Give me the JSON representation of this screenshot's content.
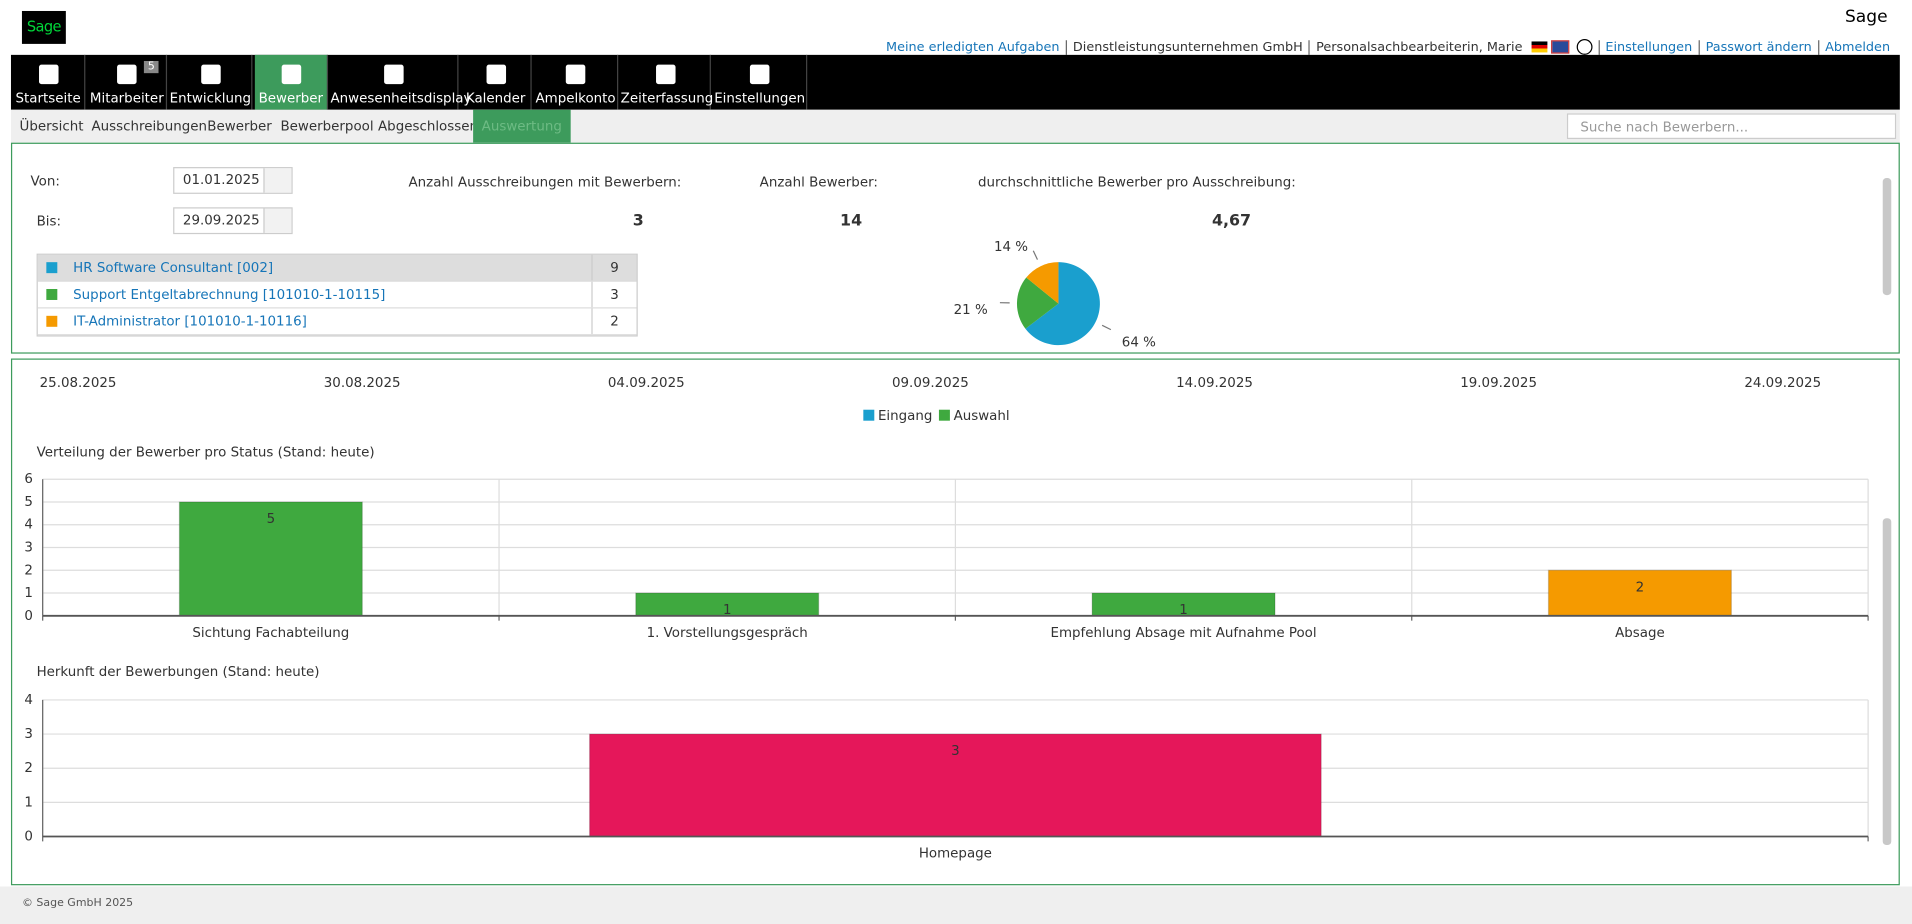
{
  "header": {
    "brand": "Sage",
    "links": [
      "Meine erledigten Aufgaben",
      "Dienstleistungsunternehmen GmbH",
      "Personalsachbearbeiterin, Marie",
      "Einstellungen",
      "Passwort ändern",
      "Abmelden"
    ]
  },
  "nav": [
    {
      "label": "Startseite"
    },
    {
      "label": "Mitarbeiter",
      "badge": 5
    },
    {
      "label": "Entwicklung"
    },
    {
      "label": "Bewerber",
      "active": true
    },
    {
      "label": "Anwesenheitsdisplay"
    },
    {
      "label": "Kalender"
    },
    {
      "label": "Ampelkonto"
    },
    {
      "label": "Zeiterfassung"
    },
    {
      "label": "Einstellungen"
    }
  ],
  "subnav": [
    {
      "label": "Übersicht"
    },
    {
      "label": "Ausschreibungen"
    },
    {
      "label": "Bewerber"
    },
    {
      "label": "Bewerberpool"
    },
    {
      "label": "Abgeschlossen"
    },
    {
      "label": "Auswertung",
      "active": true
    }
  ],
  "search_placeholder": "Suche nach Bewerbern...",
  "filter": {
    "from_label": "Von:",
    "from": "01.01.2025",
    "to_label": "Bis:",
    "to": "29.09.2025"
  },
  "stats": [
    {
      "label": "Anzahl Ausschreibungen mit Bewerbern:",
      "value": 3
    },
    {
      "label": "Anzahl Bewerber:",
      "value": 14
    },
    {
      "label": "durchschnittliche Bewerber pro Ausschreibung:",
      "value": 4.67,
      "value_label": "4,67"
    }
  ],
  "postings": [
    {
      "name": "HR Software Consultant [002]",
      "count": 9,
      "color": "#1a9fce"
    },
    {
      "name": "Support Entgeltabrechnung [101010-1-10115]",
      "count": 3,
      "color": "#3fa93f"
    },
    {
      "name": "IT-Administrator [101010-1-10116]",
      "count": 2,
      "color": "#f59a00"
    }
  ],
  "chart_data": [
    {
      "type": "pie",
      "values": [
        64,
        21,
        14
      ],
      "value_labels": [
        "64 %",
        "21 %",
        "14 %"
      ],
      "colors": [
        "#1a9fce",
        "#3fa93f",
        "#f59a00"
      ]
    },
    {
      "type": "line",
      "categories": [
        "25.08.2025",
        "30.08.2025",
        "04.09.2025",
        "09.09.2025",
        "14.09.2025",
        "19.09.2025",
        "24.09.2025"
      ],
      "series": [
        {
          "name": "Eingang",
          "color": "#1a9fce"
        },
        {
          "name": "Auswahl",
          "color": "#3fa93f"
        }
      ]
    },
    {
      "type": "bar",
      "title": "Verteilung der Bewerber pro Status (Stand: heute)",
      "categories": [
        "Sichtung Fachabteilung",
        "1. Vorstellungsgespräch",
        "Empfehlung Absage mit Aufnahme Pool",
        "Absage"
      ],
      "values": [
        5,
        1,
        1,
        2
      ],
      "colors": [
        "#3fa93f",
        "#3fa93f",
        "#3fa93f",
        "#f59a00"
      ],
      "ylim": [
        0,
        6
      ],
      "yticks": [
        0,
        1,
        2,
        3,
        4,
        5,
        6
      ],
      "grid": true
    },
    {
      "type": "bar",
      "title": "Herkunft der Bewerbungen (Stand: heute)",
      "categories": [
        "Homepage"
      ],
      "values": [
        3
      ],
      "colors": [
        "#e5175a"
      ],
      "ylim": [
        0,
        4
      ],
      "yticks": [
        0,
        1,
        2,
        3,
        4
      ],
      "grid": true
    }
  ],
  "footer": "© Sage GmbH 2025"
}
